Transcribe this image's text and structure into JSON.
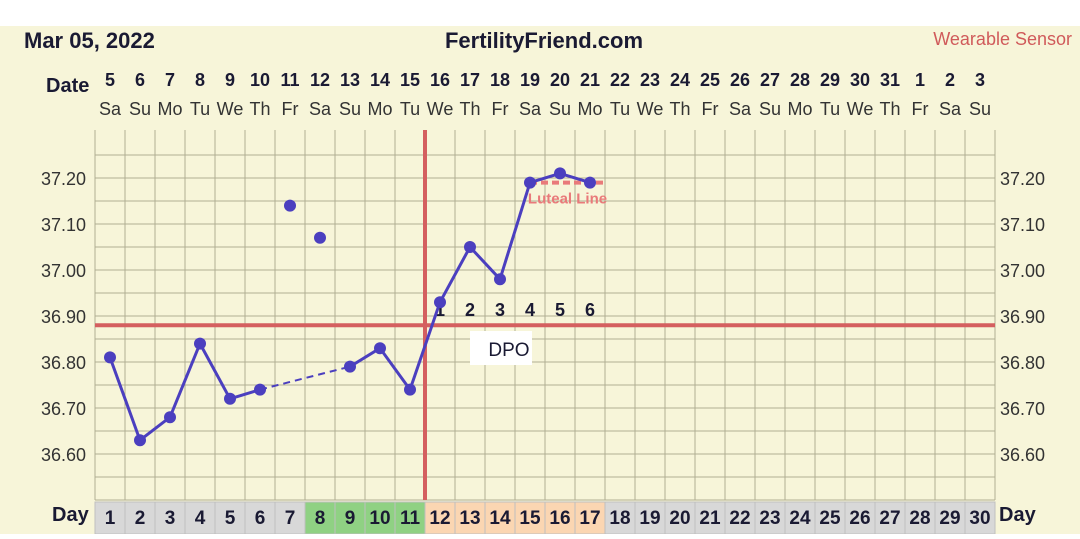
{
  "header": {
    "date": "Mar 05, 2022",
    "site": "FertilityFriend.com",
    "sensor": "Wearable Sensor"
  },
  "row_labels": {
    "date": "Date",
    "day": "Day"
  },
  "colors": {
    "background": "#f7f5d9",
    "grid": "#b0ae92",
    "temp_line": "#4b3fbf",
    "coverline": "#d45f5f",
    "luteal": "#e97a7a",
    "day_green": "#8fd183",
    "day_peach": "#fbd6b2",
    "day_gray": "#d8d8d8",
    "sensor_text": "#d05a5a"
  },
  "chart_data": {
    "type": "line",
    "title": "FertilityFriend.com",
    "ylim": [
      36.5,
      37.3
    ],
    "y_ticks": [
      "37.20",
      "37.10",
      "37.00",
      "36.90",
      "36.80",
      "36.70",
      "36.60"
    ],
    "y_tick_values": [
      37.2,
      37.1,
      37.0,
      36.9,
      36.8,
      36.7,
      36.6
    ],
    "dates": [
      "5",
      "6",
      "7",
      "8",
      "9",
      "10",
      "11",
      "12",
      "13",
      "14",
      "15",
      "16",
      "17",
      "18",
      "19",
      "20",
      "21",
      "22",
      "23",
      "24",
      "25",
      "26",
      "27",
      "28",
      "29",
      "30",
      "31",
      "1",
      "2",
      "3"
    ],
    "weekdays": [
      "Sa",
      "Su",
      "Mo",
      "Tu",
      "We",
      "Th",
      "Fr",
      "Sa",
      "Su",
      "Mo",
      "Tu",
      "We",
      "Th",
      "Fr",
      "Sa",
      "Su",
      "Mo",
      "Tu",
      "We",
      "Th",
      "Fr",
      "Sa",
      "Su",
      "Mo",
      "Tu",
      "We",
      "Th",
      "Fr",
      "Sa",
      "Su"
    ],
    "cycle_days": [
      "1",
      "2",
      "3",
      "4",
      "5",
      "6",
      "7",
      "8",
      "9",
      "10",
      "11",
      "12",
      "13",
      "14",
      "15",
      "16",
      "17",
      "18",
      "19",
      "20",
      "21",
      "22",
      "23",
      "24",
      "25",
      "26",
      "27",
      "28",
      "29",
      "30"
    ],
    "day_colors": [
      "gray",
      "gray",
      "gray",
      "gray",
      "gray",
      "gray",
      "gray",
      "green",
      "green",
      "green",
      "green",
      "peach",
      "peach",
      "peach",
      "peach",
      "peach",
      "peach",
      "gray",
      "gray",
      "gray",
      "gray",
      "gray",
      "gray",
      "gray",
      "gray",
      "gray",
      "gray",
      "gray",
      "gray",
      "gray"
    ],
    "temperatures": [
      {
        "day": 1,
        "temp": 36.81
      },
      {
        "day": 2,
        "temp": 36.63
      },
      {
        "day": 3,
        "temp": 36.68
      },
      {
        "day": 4,
        "temp": 36.84
      },
      {
        "day": 5,
        "temp": 36.72
      },
      {
        "day": 6,
        "temp": 36.74
      },
      {
        "day": 7,
        "temp": 37.14,
        "discarded": true
      },
      {
        "day": 8,
        "temp": 37.07,
        "discarded": true
      },
      {
        "day": 9,
        "temp": 36.79
      },
      {
        "day": 10,
        "temp": 36.83
      },
      {
        "day": 11,
        "temp": 36.74
      },
      {
        "day": 12,
        "temp": 36.93
      },
      {
        "day": 13,
        "temp": 37.05
      },
      {
        "day": 14,
        "temp": 36.98
      },
      {
        "day": 15,
        "temp": 37.19
      },
      {
        "day": 16,
        "temp": 37.21
      },
      {
        "day": 17,
        "temp": 37.19
      }
    ],
    "dashed_segment": [
      6,
      9
    ],
    "coverline": 36.88,
    "ovulation_day": 11,
    "dpo": {
      "label": "DPO",
      "start_day": 12,
      "values": [
        "1",
        "2",
        "3",
        "4",
        "5",
        "6"
      ]
    },
    "luteal": {
      "label": "Luteal Line",
      "temp": 37.19,
      "start_day": 14.5,
      "end_day": 17
    }
  }
}
